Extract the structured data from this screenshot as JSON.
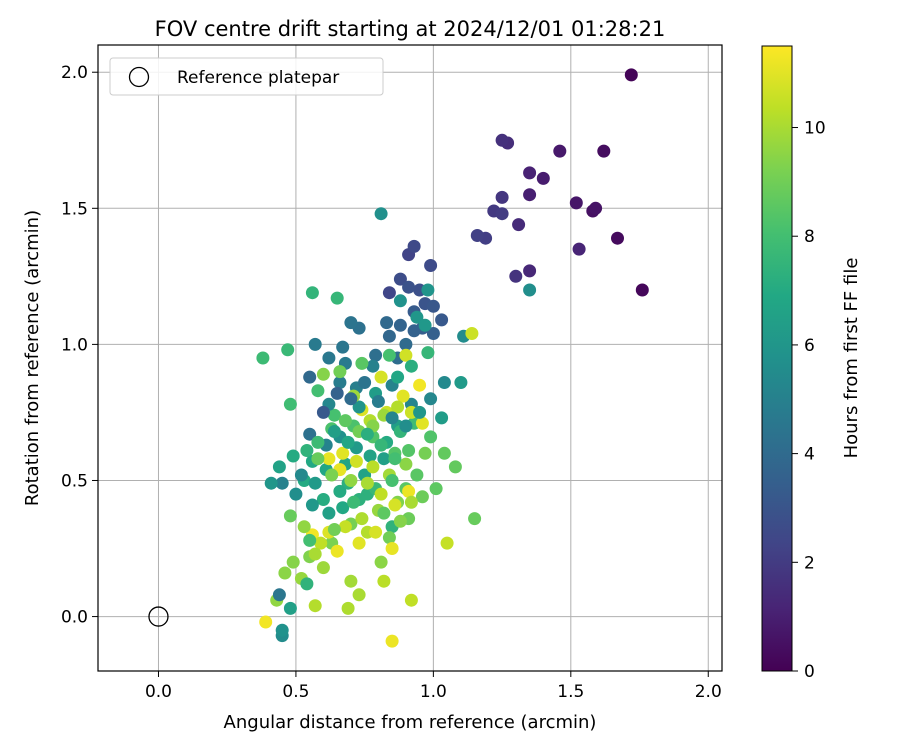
{
  "chart_data": {
    "type": "scatter",
    "title": "FOV centre drift starting at 2024/12/01 01:28:21",
    "xlabel": "Angular distance from reference (arcmin)",
    "ylabel": "Rotation from reference (arcmin)",
    "xlim": [
      -0.22,
      2.05
    ],
    "ylim": [
      -0.2,
      2.1
    ],
    "x_ticks": [
      0.0,
      0.5,
      1.0,
      1.5,
      2.0
    ],
    "y_ticks": [
      0.0,
      0.5,
      1.0,
      1.5,
      2.0
    ],
    "x_tick_labels": [
      "0.0",
      "0.5",
      "1.0",
      "1.5",
      "2.0"
    ],
    "y_tick_labels": [
      "0.0",
      "0.5",
      "1.0",
      "1.5",
      "2.0"
    ],
    "grid": true,
    "legend": {
      "placement": "top-left",
      "entries": [
        {
          "label": "Reference platepar",
          "marker": "open-circle"
        }
      ]
    },
    "reference_point": {
      "x": 0.0,
      "y": 0.0
    },
    "colorbar": {
      "label": "Hours from first FF file",
      "range": [
        0,
        11.5
      ],
      "ticks": [
        0,
        2,
        4,
        6,
        8,
        10
      ],
      "tick_labels": [
        "0",
        "2",
        "4",
        "6",
        "8",
        "10"
      ],
      "colormap": "viridis"
    },
    "points": [
      [
        1.72,
        1.99,
        0.1
      ],
      [
        1.76,
        1.2,
        0.2
      ],
      [
        1.67,
        1.39,
        0.3
      ],
      [
        1.62,
        1.71,
        0.4
      ],
      [
        1.58,
        1.49,
        0.5
      ],
      [
        1.59,
        1.5,
        0.6
      ],
      [
        1.52,
        1.52,
        0.7
      ],
      [
        1.46,
        1.71,
        0.8
      ],
      [
        1.4,
        1.61,
        0.9
      ],
      [
        1.35,
        1.55,
        1.0
      ],
      [
        1.35,
        1.63,
        1.1
      ],
      [
        1.53,
        1.35,
        1.2
      ],
      [
        1.35,
        1.27,
        1.3
      ],
      [
        1.31,
        1.44,
        1.4
      ],
      [
        1.27,
        1.74,
        1.5
      ],
      [
        1.25,
        1.75,
        1.6
      ],
      [
        1.3,
        1.25,
        1.7
      ],
      [
        1.25,
        1.54,
        1.8
      ],
      [
        1.22,
        1.49,
        1.9
      ],
      [
        1.25,
        1.48,
        2.0
      ],
      [
        1.19,
        1.39,
        2.1
      ],
      [
        1.16,
        1.4,
        2.2
      ],
      [
        0.91,
        1.33,
        2.3
      ],
      [
        0.84,
        1.19,
        2.4
      ],
      [
        0.93,
        1.36,
        2.5
      ],
      [
        0.99,
        1.29,
        2.6
      ],
      [
        0.88,
        1.24,
        2.7
      ],
      [
        0.95,
        1.2,
        2.8
      ],
      [
        0.91,
        1.21,
        2.9
      ],
      [
        0.97,
        1.15,
        3.0
      ],
      [
        1.0,
        1.14,
        3.1
      ],
      [
        1.03,
        1.09,
        3.2
      ],
      [
        0.93,
        1.12,
        3.3
      ],
      [
        0.96,
        1.06,
        3.4
      ],
      [
        1.0,
        1.04,
        3.5
      ],
      [
        0.93,
        1.05,
        3.6
      ],
      [
        0.88,
        1.07,
        3.7
      ],
      [
        0.84,
        1.03,
        3.8
      ],
      [
        0.83,
        1.08,
        3.9
      ],
      [
        0.9,
        1.0,
        4.0
      ],
      [
        0.87,
        0.95,
        4.1
      ],
      [
        0.79,
        0.96,
        4.2
      ],
      [
        0.73,
        1.06,
        4.3
      ],
      [
        0.7,
        1.08,
        4.4
      ],
      [
        0.67,
        0.99,
        4.5
      ],
      [
        0.62,
        0.95,
        4.6
      ],
      [
        0.57,
        1.0,
        4.7
      ],
      [
        0.66,
        0.86,
        4.8
      ],
      [
        0.72,
        0.84,
        4.9
      ],
      [
        0.78,
        0.92,
        5.0
      ],
      [
        0.85,
        0.85,
        5.1
      ],
      [
        0.92,
        0.78,
        5.2
      ],
      [
        0.99,
        0.8,
        5.3
      ],
      [
        1.04,
        0.86,
        5.4
      ],
      [
        1.11,
        1.03,
        5.5
      ],
      [
        1.35,
        1.2,
        5.6
      ],
      [
        0.81,
        1.48,
        5.7
      ],
      [
        0.88,
        1.16,
        5.8
      ],
      [
        0.98,
        1.2,
        5.9
      ],
      [
        0.94,
        1.1,
        6.0
      ],
      [
        0.97,
        1.07,
        6.1
      ],
      [
        1.1,
        0.86,
        6.2
      ],
      [
        1.03,
        0.73,
        6.3
      ],
      [
        0.87,
        0.7,
        6.4
      ],
      [
        0.82,
        0.58,
        6.5
      ],
      [
        0.75,
        0.52,
        6.6
      ],
      [
        0.68,
        0.56,
        6.7
      ],
      [
        0.61,
        0.54,
        6.8
      ],
      [
        0.56,
        0.57,
        6.9
      ],
      [
        0.53,
        0.5,
        7.0
      ],
      [
        0.6,
        0.43,
        7.1
      ],
      [
        0.69,
        0.49,
        7.2
      ],
      [
        0.76,
        0.45,
        7.3
      ],
      [
        0.85,
        0.33,
        7.4
      ],
      [
        0.56,
        1.19,
        7.5
      ],
      [
        0.65,
        1.17,
        7.6
      ],
      [
        0.47,
        0.98,
        7.7
      ],
      [
        0.38,
        0.95,
        7.8
      ],
      [
        0.48,
        0.78,
        7.9
      ],
      [
        0.58,
        0.83,
        8.0
      ],
      [
        0.64,
        0.74,
        8.1
      ],
      [
        0.71,
        0.7,
        8.2
      ],
      [
        0.78,
        0.66,
        8.3
      ],
      [
        0.86,
        0.6,
        8.4
      ],
      [
        0.94,
        0.52,
        8.5
      ],
      [
        1.01,
        0.47,
        8.6
      ],
      [
        1.08,
        0.55,
        8.7
      ],
      [
        1.15,
        0.36,
        8.8
      ],
      [
        0.91,
        0.36,
        8.9
      ],
      [
        0.84,
        0.29,
        9.0
      ],
      [
        0.7,
        0.34,
        9.1
      ],
      [
        0.63,
        0.27,
        9.2
      ],
      [
        0.55,
        0.22,
        9.3
      ],
      [
        0.49,
        0.2,
        9.4
      ],
      [
        0.46,
        0.16,
        9.5
      ],
      [
        0.43,
        0.06,
        9.6
      ],
      [
        0.52,
        0.14,
        9.7
      ],
      [
        0.6,
        0.18,
        9.8
      ],
      [
        0.7,
        0.13,
        9.9
      ],
      [
        0.73,
        0.08,
        10.0
      ],
      [
        0.69,
        0.03,
        10.1
      ],
      [
        0.57,
        0.04,
        10.2
      ],
      [
        0.82,
        0.13,
        10.3
      ],
      [
        0.92,
        0.06,
        10.4
      ],
      [
        1.05,
        0.27,
        10.5
      ],
      [
        1.14,
        1.04,
        10.6
      ],
      [
        0.9,
        0.96,
        10.7
      ],
      [
        0.81,
        0.88,
        10.8
      ],
      [
        0.74,
        0.76,
        10.9
      ],
      [
        0.67,
        0.6,
        11.0
      ],
      [
        0.62,
        0.58,
        11.1
      ],
      [
        0.85,
        -0.09,
        11.2
      ],
      [
        0.39,
        -0.02,
        11.3
      ],
      [
        0.55,
        0.88,
        3.9
      ],
      [
        0.68,
        0.93,
        4.7
      ],
      [
        0.62,
        0.78,
        5.3
      ],
      [
        0.73,
        0.77,
        5.9
      ],
      [
        0.79,
        0.82,
        6.3
      ],
      [
        0.87,
        0.88,
        6.8
      ],
      [
        0.92,
        0.92,
        7.2
      ],
      [
        0.98,
        0.97,
        7.6
      ],
      [
        0.84,
        0.96,
        8.1
      ],
      [
        0.74,
        0.93,
        8.5
      ],
      [
        0.66,
        0.9,
        9.0
      ],
      [
        0.6,
        0.89,
        9.4
      ],
      [
        0.71,
        0.81,
        9.8
      ],
      [
        0.77,
        0.72,
        10.2
      ],
      [
        0.83,
        0.75,
        10.6
      ],
      [
        0.89,
        0.81,
        11.0
      ],
      [
        0.95,
        0.85,
        11.3
      ],
      [
        0.55,
        0.67,
        4.3
      ],
      [
        0.61,
        0.63,
        5.1
      ],
      [
        0.66,
        0.66,
        5.7
      ],
      [
        0.72,
        0.62,
        6.2
      ],
      [
        0.77,
        0.59,
        6.6
      ],
      [
        0.83,
        0.64,
        7.0
      ],
      [
        0.88,
        0.68,
        7.5
      ],
      [
        0.93,
        0.71,
        7.9
      ],
      [
        0.99,
        0.66,
        8.3
      ],
      [
        1.04,
        0.6,
        8.7
      ],
      [
        0.97,
        0.6,
        9.1
      ],
      [
        0.9,
        0.56,
        9.5
      ],
      [
        0.84,
        0.52,
        9.9
      ],
      [
        0.78,
        0.55,
        10.3
      ],
      [
        0.72,
        0.57,
        10.7
      ],
      [
        0.66,
        0.54,
        11.1
      ],
      [
        0.45,
        0.49,
        5.0
      ],
      [
        0.5,
        0.45,
        5.6
      ],
      [
        0.56,
        0.41,
        6.1
      ],
      [
        0.62,
        0.38,
        6.5
      ],
      [
        0.67,
        0.4,
        6.9
      ],
      [
        0.73,
        0.43,
        7.3
      ],
      [
        0.79,
        0.47,
        7.7
      ],
      [
        0.85,
        0.5,
        8.1
      ],
      [
        0.9,
        0.47,
        8.5
      ],
      [
        0.96,
        0.44,
        8.9
      ],
      [
        0.87,
        0.42,
        9.3
      ],
      [
        0.8,
        0.39,
        9.7
      ],
      [
        0.74,
        0.36,
        10.1
      ],
      [
        0.68,
        0.33,
        10.5
      ],
      [
        0.62,
        0.31,
        10.9
      ],
      [
        0.56,
        0.3,
        11.3
      ],
      [
        0.41,
        0.49,
        6.0
      ],
      [
        0.44,
        0.55,
        6.6
      ],
      [
        0.49,
        0.59,
        7.0
      ],
      [
        0.54,
        0.61,
        7.4
      ],
      [
        0.58,
        0.64,
        7.8
      ],
      [
        0.63,
        0.69,
        8.2
      ],
      [
        0.68,
        0.72,
        8.6
      ],
      [
        0.73,
        0.68,
        9.0
      ],
      [
        0.78,
        0.7,
        9.4
      ],
      [
        0.82,
        0.74,
        9.8
      ],
      [
        0.87,
        0.77,
        10.2
      ],
      [
        0.92,
        0.75,
        10.6
      ],
      [
        0.96,
        0.71,
        11.0
      ],
      [
        0.48,
        0.37,
        8.8
      ],
      [
        0.53,
        0.33,
        9.6
      ],
      [
        0.59,
        0.27,
        10.4
      ],
      [
        0.65,
        0.24,
        11.2
      ],
      [
        0.6,
        0.75,
        3.2
      ],
      [
        0.65,
        0.82,
        3.6
      ],
      [
        0.7,
        0.8,
        4.0
      ],
      [
        0.75,
        0.86,
        4.4
      ],
      [
        0.8,
        0.79,
        4.8
      ],
      [
        0.85,
        0.73,
        5.2
      ],
      [
        0.9,
        0.7,
        5.6
      ],
      [
        0.95,
        0.75,
        6.0
      ],
      [
        0.64,
        0.68,
        6.4
      ],
      [
        0.69,
        0.64,
        6.8
      ],
      [
        0.76,
        0.67,
        7.2
      ],
      [
        0.81,
        0.63,
        7.6
      ],
      [
        0.86,
        0.58,
        8.0
      ],
      [
        0.91,
        0.61,
        8.4
      ],
      [
        0.58,
        0.58,
        8.8
      ],
      [
        0.63,
        0.52,
        9.2
      ],
      [
        0.7,
        0.5,
        9.6
      ],
      [
        0.76,
        0.49,
        10.0
      ],
      [
        0.81,
        0.45,
        10.4
      ],
      [
        0.86,
        0.41,
        10.8
      ],
      [
        0.91,
        0.46,
        11.2
      ],
      [
        0.52,
        0.52,
        5.4
      ],
      [
        0.57,
        0.49,
        6.2
      ],
      [
        0.66,
        0.46,
        7.0
      ],
      [
        0.71,
        0.42,
        7.8
      ],
      [
        0.82,
        0.38,
        8.6
      ],
      [
        0.88,
        0.35,
        9.4
      ],
      [
        0.76,
        0.31,
        10.2
      ],
      [
        0.73,
        0.27,
        11.0
      ],
      [
        0.54,
        0.12,
        7.4
      ],
      [
        0.48,
        0.03,
        6.5
      ],
      [
        0.45,
        -0.07,
        5.5
      ],
      [
        0.45,
        -0.05,
        5.8
      ],
      [
        0.44,
        0.08,
        4.5
      ],
      [
        0.55,
        0.28,
        8.0
      ],
      [
        0.64,
        0.32,
        9.0
      ],
      [
        0.57,
        0.23,
        10.0
      ],
      [
        0.81,
        0.2,
        9.5
      ],
      [
        0.79,
        0.31,
        10.8
      ],
      [
        0.85,
        0.25,
        11.1
      ],
      [
        0.92,
        0.42,
        10.0
      ]
    ]
  }
}
